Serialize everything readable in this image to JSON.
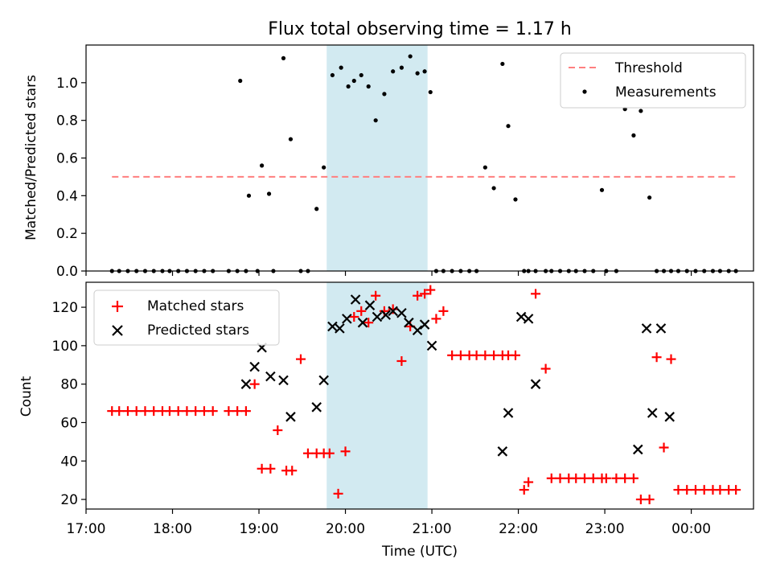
{
  "title": "Flux total observing time = 1.17 h",
  "colors": {
    "threshold": "#ff7f7f",
    "measurements": "#000000",
    "matched": "#ff0000",
    "predicted": "#000000",
    "highlight": "#add8e6"
  },
  "chart_data": [
    {
      "type": "scatter",
      "ylabel": "Matched/Predicted stars",
      "xlim": [
        17.0,
        0.72
      ],
      "ylim": [
        0,
        1.2
      ],
      "yticks": [
        0.0,
        0.2,
        0.4,
        0.6,
        0.8,
        1.0
      ],
      "ytick_labels": [
        "0.0",
        "0.2",
        "0.4",
        "0.6",
        "0.8",
        "1.0"
      ],
      "grid": false,
      "legend_position": "upper right",
      "highlight_span": [
        "19:47",
        "20:57"
      ],
      "threshold": {
        "name": "Threshold",
        "value": 0.5,
        "x_range": [
          "17:18",
          "00:31"
        ],
        "style": "dashed"
      },
      "series": [
        {
          "name": "Measurements",
          "marker": "dot",
          "x": [
            "17:18",
            "17:23",
            "17:29",
            "17:35",
            "17:41",
            "17:47",
            "17:53",
            "17:58",
            "18:04",
            "18:10",
            "18:16",
            "18:22",
            "18:28",
            "18:39",
            "18:45",
            "18:51",
            "18:47",
            "18:53",
            "18:59",
            "19:02",
            "19:07",
            "19:10",
            "19:17",
            "19:22",
            "19:29",
            "19:34",
            "19:40",
            "19:45",
            "19:51",
            "19:57",
            "20:02",
            "20:06",
            "20:11",
            "20:16",
            "20:21",
            "20:27",
            "20:33",
            "20:39",
            "20:45",
            "20:50",
            "20:55",
            "20:59",
            "21:03",
            "21:08",
            "21:14",
            "21:20",
            "21:26",
            "21:31",
            "21:37",
            "21:43",
            "21:49",
            "21:53",
            "21:58",
            "22:04",
            "22:07",
            "22:12",
            "22:19",
            "22:23",
            "22:29",
            "22:35",
            "22:40",
            "22:46",
            "22:52",
            "22:58",
            "23:01",
            "23:08",
            "23:14",
            "23:20",
            "23:25",
            "23:31",
            "23:36",
            "23:41",
            "23:46",
            "23:51",
            "23:57",
            "00:03",
            "00:09",
            "00:15",
            "00:20",
            "00:26",
            "00:31"
          ],
          "y": [
            0,
            0,
            0,
            0,
            0,
            0,
            0,
            0,
            0,
            0,
            0,
            0,
            0,
            0,
            0,
            0,
            1.01,
            0.4,
            0,
            0.56,
            0.41,
            0,
            1.13,
            0.7,
            0,
            0,
            0.33,
            0.55,
            1.04,
            1.08,
            0.98,
            1.01,
            1.04,
            0.98,
            0.8,
            0.94,
            1.06,
            1.08,
            1.14,
            1.05,
            1.06,
            0.95,
            0,
            0,
            0,
            0,
            0,
            0,
            0.55,
            0.44,
            1.1,
            0.77,
            0.38,
            0,
            0,
            0,
            0,
            0,
            0,
            0,
            0,
            0,
            0,
            0.43,
            0,
            0,
            0.86,
            0.72,
            0.85,
            0.39,
            0,
            0,
            0,
            0,
            0,
            0,
            0,
            0,
            0,
            0,
            0
          ],
          "note": ""
        }
      ]
    },
    {
      "type": "scatter",
      "xlabel": "Time (UTC)",
      "ylabel": "Count",
      "xlim": [
        17.0,
        0.72
      ],
      "ylim": [
        15,
        133
      ],
      "xticks": [
        "17:00",
        "18:00",
        "19:00",
        "20:00",
        "21:00",
        "22:00",
        "23:00",
        "00:00"
      ],
      "yticks": [
        20,
        40,
        60,
        80,
        100,
        120
      ],
      "grid": false,
      "legend_position": "upper left",
      "highlight_span": [
        "19:47",
        "20:57"
      ],
      "series": [
        {
          "name": "Matched stars",
          "marker": "plus",
          "x": [
            "17:18",
            "17:23",
            "17:29",
            "17:35",
            "17:41",
            "17:47",
            "17:53",
            "17:58",
            "18:04",
            "18:10",
            "18:16",
            "18:22",
            "18:28",
            "18:39",
            "18:45",
            "18:51",
            "18:57",
            "19:02",
            "19:08",
            "19:13",
            "19:19",
            "19:23",
            "19:29",
            "19:34",
            "19:40",
            "19:45",
            "19:49",
            "19:55",
            "20:00",
            "20:06",
            "20:11",
            "20:16",
            "20:21",
            "20:27",
            "20:33",
            "20:39",
            "20:45",
            "20:50",
            "20:55",
            "20:59",
            "21:03",
            "21:08",
            "21:14",
            "21:20",
            "21:26",
            "21:31",
            "21:37",
            "21:43",
            "21:49",
            "21:53",
            "21:58",
            "22:04",
            "22:07",
            "22:12",
            "22:19",
            "22:23",
            "22:29",
            "22:35",
            "22:40",
            "22:46",
            "22:52",
            "22:58",
            "23:01",
            "23:08",
            "23:14",
            "23:20",
            "23:25",
            "23:31",
            "23:36",
            "23:41",
            "23:46",
            "23:51",
            "23:57",
            "00:03",
            "00:09",
            "00:15",
            "00:20",
            "00:26",
            "00:31"
          ],
          "y": [
            66,
            66,
            66,
            66,
            66,
            66,
            66,
            66,
            66,
            66,
            66,
            66,
            66,
            66,
            66,
            66,
            80,
            36,
            36,
            56,
            35,
            35,
            93,
            44,
            44,
            44,
            44,
            23,
            45,
            115,
            118,
            112,
            126,
            118,
            119,
            92,
            110,
            126,
            127,
            129,
            114,
            118,
            95,
            95,
            95,
            95,
            95,
            95,
            95,
            95,
            95,
            25,
            29,
            127,
            88,
            31,
            31,
            31,
            31,
            31,
            31,
            31,
            31,
            31,
            31,
            31,
            20,
            20,
            94,
            47,
            93,
            25,
            25,
            25,
            25,
            25,
            25,
            25,
            25
          ],
          "note": ""
        },
        {
          "name": "Predicted stars",
          "marker": "x",
          "x": [
            "18:51",
            "18:57",
            "19:02",
            "19:08",
            "19:17",
            "19:22",
            "19:40",
            "19:45",
            "19:51",
            "19:56",
            "20:01",
            "20:07",
            "20:12",
            "20:17",
            "20:22",
            "20:28",
            "20:33",
            "20:39",
            "20:44",
            "20:50",
            "20:55",
            "21:00",
            "21:49",
            "21:53",
            "22:02",
            "22:07",
            "22:12",
            "23:23",
            "23:29",
            "23:33",
            "23:39",
            "23:45"
          ],
          "y": [
            80,
            89,
            99,
            84,
            82,
            63,
            68,
            82,
            110,
            109,
            114,
            124,
            112,
            121,
            115,
            116,
            118,
            117,
            112,
            108,
            111,
            100,
            45,
            65,
            115,
            114,
            80,
            46,
            109,
            65,
            109,
            63
          ]
        }
      ]
    }
  ]
}
